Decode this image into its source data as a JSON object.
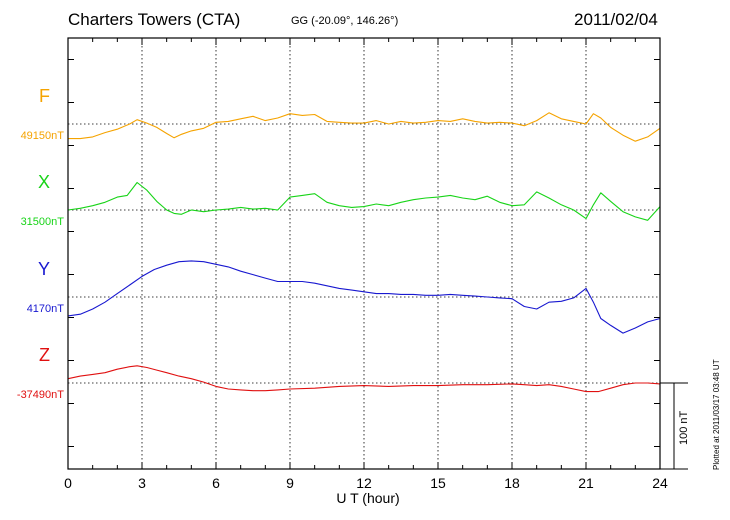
{
  "header": {
    "station": "Charters Towers (CTA)",
    "coords": "GG (-20.09°, 146.26°)",
    "date": "2011/02/04"
  },
  "footer": {
    "plotted": "Plotted at 2011/03/17 03:48 UT"
  },
  "chart_data": {
    "type": "line",
    "xlabel": "U T (hour)",
    "xlim": [
      0,
      24
    ],
    "x_ticks": [
      "0",
      "3",
      "6",
      "9",
      "12",
      "15",
      "18",
      "21",
      "24"
    ],
    "grid": true,
    "scale_bar": {
      "value": 100,
      "label": "100 nT"
    },
    "series": [
      {
        "name": "F",
        "baseline_label": "49150nT",
        "color": "#f5a300",
        "x": [
          0,
          0.5,
          1,
          1.5,
          2,
          2.5,
          2.8,
          3.2,
          3.6,
          4,
          4.3,
          4.6,
          5,
          5.5,
          6,
          6.5,
          7,
          7.5,
          8,
          8.5,
          9,
          9.5,
          10,
          10.5,
          11,
          11.5,
          12,
          12.5,
          13,
          13.5,
          14,
          14.5,
          15,
          15.5,
          16,
          16.5,
          17,
          17.5,
          18,
          18.5,
          19,
          19.5,
          20,
          20.5,
          21,
          21.3,
          21.6,
          22,
          22.5,
          23,
          23.5,
          24
        ],
        "y": [
          -17,
          -17,
          -15,
          -10,
          -6,
          0,
          5,
          1,
          -4,
          -11,
          -16,
          -12,
          -8,
          -5,
          2,
          3,
          6,
          9,
          4,
          7,
          12,
          10,
          11,
          3,
          2,
          1,
          1,
          4,
          0,
          3,
          1,
          2,
          4,
          3,
          6,
          3,
          1,
          2,
          1,
          -2,
          4,
          13,
          6,
          3,
          0,
          12,
          7,
          -4,
          -13,
          -20,
          -15,
          -5
        ]
      },
      {
        "name": "X",
        "baseline_label": "31500nT",
        "color": "#18d418",
        "x": [
          0,
          0.5,
          1,
          1.5,
          2,
          2.4,
          2.8,
          3.2,
          3.6,
          4,
          4.3,
          4.6,
          5,
          5.5,
          6,
          6.5,
          7,
          7.5,
          8,
          8.5,
          9,
          9.5,
          10,
          10.5,
          11,
          11.5,
          12,
          12.5,
          13,
          13.5,
          14,
          14.5,
          15,
          15.5,
          16,
          16.5,
          17,
          17.5,
          18,
          18.5,
          19,
          19.5,
          20,
          20.5,
          21,
          21.3,
          21.6,
          22,
          22.5,
          23,
          23.5,
          24
        ],
        "y": [
          0,
          2,
          5,
          9,
          15,
          17,
          32,
          23,
          10,
          0,
          -4,
          -5,
          0,
          -2,
          0,
          1,
          3,
          1,
          2,
          0,
          15,
          17,
          19,
          9,
          5,
          3,
          4,
          7,
          5,
          9,
          12,
          14,
          15,
          17,
          14,
          12,
          16,
          9,
          5,
          6,
          21,
          14,
          6,
          0,
          -10,
          6,
          20,
          10,
          -2,
          -8,
          -12,
          4
        ]
      },
      {
        "name": "Y",
        "baseline_label": "4170nT",
        "color": "#1818d0",
        "x": [
          0,
          0.5,
          1,
          1.5,
          2,
          2.5,
          3,
          3.5,
          4,
          4.5,
          5,
          5.5,
          6,
          6.5,
          7,
          7.5,
          8,
          8.5,
          9,
          9.5,
          10,
          10.5,
          11,
          11.5,
          12,
          12.5,
          13,
          13.5,
          14,
          14.5,
          15,
          15.5,
          16,
          16.5,
          17,
          17.5,
          18,
          18.5,
          19,
          19.5,
          20,
          20.5,
          21,
          21.3,
          21.6,
          22,
          22.5,
          23,
          23.5,
          24
        ],
        "y": [
          -22,
          -20,
          -14,
          -6,
          4,
          14,
          24,
          32,
          37,
          41,
          42,
          41,
          38,
          35,
          30,
          26,
          22,
          18,
          18,
          18,
          16,
          13,
          10,
          8,
          6,
          4,
          4,
          3,
          3,
          2,
          2,
          3,
          2,
          1,
          0,
          -1,
          -2,
          -11,
          -14,
          -6,
          -5,
          -1,
          10,
          -6,
          -25,
          -33,
          -42,
          -36,
          -29,
          -25
        ]
      },
      {
        "name": "Z",
        "baseline_label": "-37490nT",
        "color": "#e01010",
        "x": [
          0,
          0.5,
          1,
          1.5,
          2,
          2.5,
          2.8,
          3.2,
          3.6,
          4,
          4.5,
          5,
          5.5,
          6,
          6.5,
          7,
          7.5,
          8,
          8.5,
          9,
          10,
          11,
          12,
          13,
          14,
          15,
          16,
          17,
          18,
          18.5,
          19,
          19.5,
          20,
          20.5,
          21,
          21.5,
          22,
          22.5,
          23,
          23.5,
          24
        ],
        "y": [
          5,
          8,
          10,
          12,
          16,
          19,
          20,
          18,
          15,
          12,
          8,
          5,
          1,
          -4,
          -7,
          -8,
          -9,
          -9,
          -8,
          -7,
          -6,
          -4,
          -3,
          -4,
          -3,
          -3,
          -2,
          -2,
          -1,
          -2,
          -3,
          -2,
          -4,
          -7,
          -10,
          -10,
          -6,
          -2,
          0,
          0,
          -1
        ]
      }
    ]
  }
}
